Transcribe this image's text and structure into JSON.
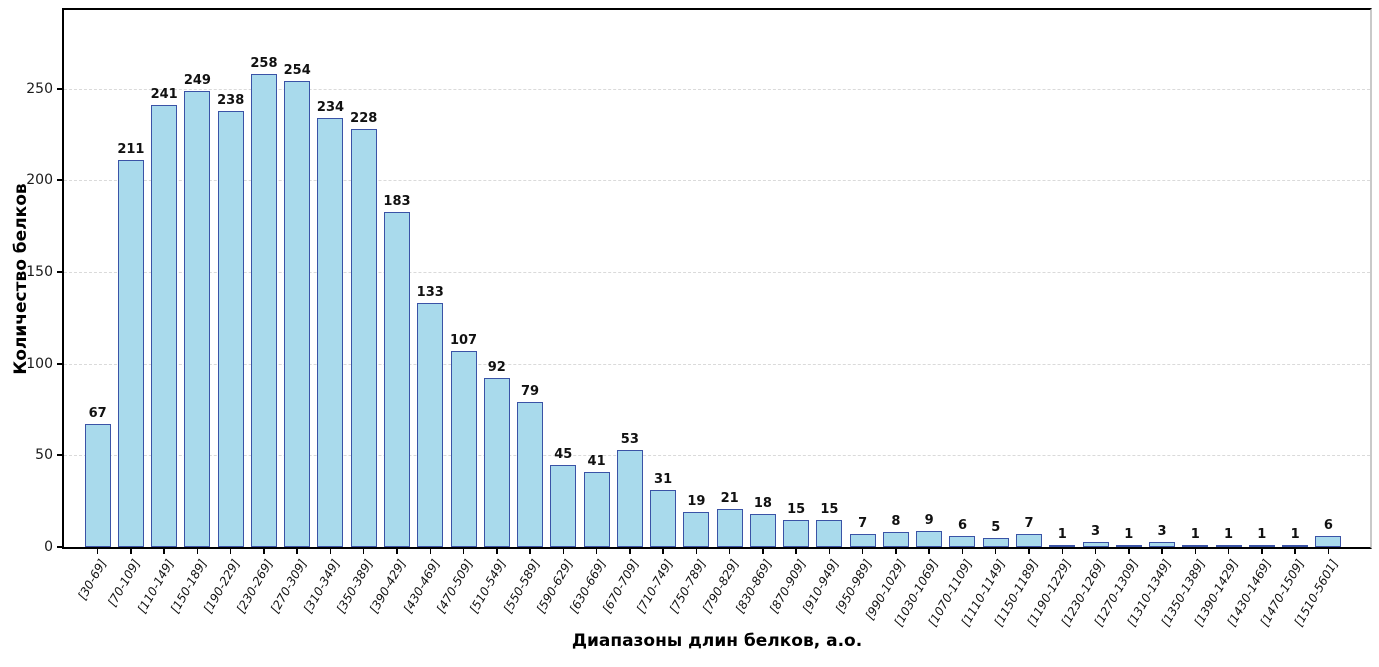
{
  "chart_data": {
    "type": "bar",
    "title": "",
    "xlabel": "Диапазоны длин белков, а.о.",
    "ylabel": "Количество белков",
    "categories": [
      "[30-69]",
      "[70-109]",
      "[110-149]",
      "[150-189]",
      "[190-229]",
      "[230-269]",
      "[270-309]",
      "[310-349]",
      "[350-389]",
      "[390-429]",
      "[430-469]",
      "[470-509]",
      "[510-549]",
      "[550-589]",
      "[590-629]",
      "[630-669]",
      "[670-709]",
      "[710-749]",
      "[750-789]",
      "[790-829]",
      "[830-869]",
      "[870-909]",
      "[910-949]",
      "[950-989]",
      "[990-1029]",
      "[1030-1069]",
      "[1070-1109]",
      "[1110-1149]",
      "[1150-1189]",
      "[1190-1229]",
      "[1230-1269]",
      "[1270-1309]",
      "[1310-1349]",
      "[1350-1389]",
      "[1390-1429]",
      "[1430-1469]",
      "[1470-1509]",
      "[1510-5601]"
    ],
    "values": [
      67,
      211,
      241,
      249,
      238,
      258,
      254,
      234,
      228,
      183,
      133,
      107,
      92,
      79,
      45,
      41,
      53,
      31,
      19,
      21,
      18,
      15,
      15,
      7,
      8,
      9,
      6,
      5,
      7,
      1,
      3,
      1,
      3,
      1,
      1,
      1,
      1,
      6
    ],
    "yticks": [
      0,
      50,
      100,
      150,
      200,
      250
    ],
    "ylim": [
      0,
      293
    ],
    "grid": "horizontal-dashed",
    "legend": "none",
    "bar_fill": "#a9daec",
    "bar_edge": "#3a53a6",
    "value_labels_shown": true
  }
}
